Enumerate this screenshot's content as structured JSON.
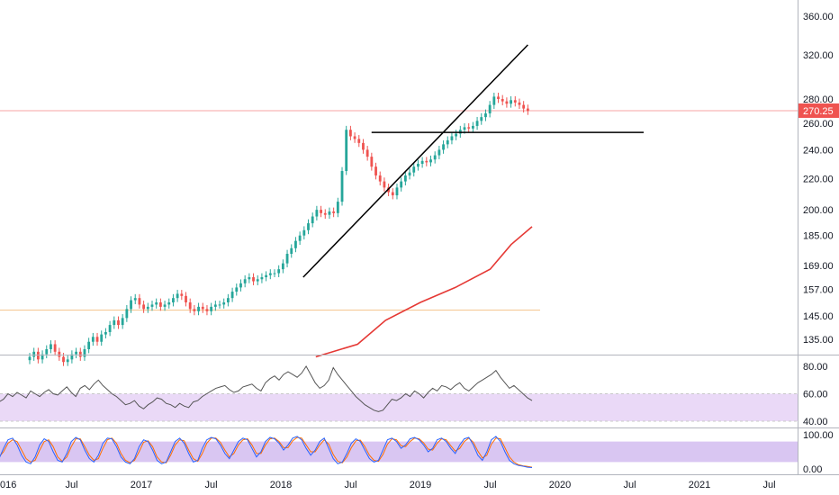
{
  "chart_data": [
    {
      "type": "candlestick",
      "panel": "price",
      "scale": "log",
      "x_labels": [
        "016",
        "Jul",
        "2017",
        "Jul",
        "2018",
        "Jul",
        "2019",
        "Jul",
        "2020",
        "Jul",
        "2021",
        "Jul"
      ],
      "x_label_years": [
        2016.0,
        2016.5,
        2017.0,
        2017.5,
        2018.0,
        2018.5,
        2019.0,
        2019.5,
        2020.0,
        2020.5,
        2021.0,
        2021.5
      ],
      "y_ticks": [
        135,
        145,
        157,
        169,
        185,
        200,
        220,
        240,
        260,
        280,
        320,
        360
      ],
      "y_tick_labels": [
        "135.00",
        "145.00",
        "157.00",
        "169.00",
        "185.00",
        "200.00",
        "220.00",
        "240.00",
        "260.00",
        "280.00",
        "320.00",
        "360.00"
      ],
      "last_price": 270.25,
      "last_price_label": "270.25",
      "colors": {
        "up": "#26a69a",
        "down": "#ef5350",
        "ma": "#e53935",
        "trendline": "#000000",
        "last_price_line": "#f7a6a6",
        "level_line": "#f5c28a"
      },
      "closes": [
        128,
        130,
        127,
        129,
        131,
        133,
        130,
        128,
        126,
        127,
        129,
        130,
        128,
        131,
        134,
        136,
        134,
        137,
        138,
        141,
        143,
        141,
        144,
        148,
        152,
        153,
        150,
        148,
        149,
        150,
        151,
        149,
        150,
        151,
        153,
        155,
        154,
        151,
        148,
        147,
        149,
        148,
        147,
        149,
        150,
        150,
        151,
        153,
        156,
        158,
        160,
        162,
        163,
        161,
        162,
        163,
        164,
        165,
        165,
        167,
        170,
        175,
        178,
        182,
        185,
        188,
        192,
        196,
        200,
        198,
        197,
        199,
        198,
        205,
        225,
        255,
        250,
        248,
        245,
        240,
        235,
        228,
        222,
        218,
        214,
        211,
        209,
        214,
        218,
        222,
        224,
        228,
        230,
        232,
        231,
        233,
        236,
        240,
        244,
        247,
        250,
        252,
        255,
        257,
        256,
        258,
        262,
        265,
        268,
        275,
        282,
        280,
        278,
        276,
        279,
        277,
        275,
        272,
        270
      ],
      "ma_line": [
        {
          "year": 2018.25,
          "value": 128
        },
        {
          "year": 2018.55,
          "value": 133
        },
        {
          "year": 2018.75,
          "value": 143
        },
        {
          "year": 2019.0,
          "value": 151
        },
        {
          "year": 2019.25,
          "value": 158
        },
        {
          "year": 2019.5,
          "value": 167
        },
        {
          "year": 2019.65,
          "value": 180
        },
        {
          "year": 2019.8,
          "value": 190
        }
      ],
      "trendlines": [
        {
          "name": "ascending-support",
          "from": {
            "year": 2018.16,
            "value": 163
          },
          "to": {
            "year": 2019.77,
            "value": 330
          }
        },
        {
          "name": "horizontal-resistance",
          "from": {
            "year": 2018.65,
            "value": 253
          },
          "to": {
            "year": 2020.6,
            "value": 253
          }
        }
      ],
      "horizontal_levels": [
        270.25,
        147.5
      ]
    },
    {
      "type": "line",
      "panel": "rsi",
      "y_ticks": [
        40,
        60,
        80
      ],
      "y_tick_labels": [
        "40.00",
        "60.00",
        "80.00"
      ],
      "band": [
        40,
        60
      ],
      "colors": {
        "line": "#555555",
        "band": "#ead9f7"
      },
      "values": [
        54,
        56,
        60,
        58,
        61,
        59,
        57,
        62,
        60,
        58,
        61,
        63,
        60,
        59,
        62,
        65,
        61,
        58,
        64,
        66,
        63,
        67,
        70,
        66,
        63,
        60,
        58,
        55,
        52,
        53,
        55,
        51,
        49,
        52,
        54,
        57,
        56,
        53,
        52,
        50,
        53,
        51,
        50,
        54,
        55,
        58,
        60,
        62,
        64,
        65,
        66,
        63,
        61,
        62,
        65,
        66,
        67,
        64,
        62,
        68,
        71,
        73,
        70,
        74,
        76,
        74,
        72,
        75,
        80,
        74,
        68,
        64,
        66,
        70,
        79,
        74,
        70,
        66,
        62,
        58,
        55,
        52,
        50,
        48,
        47,
        48,
        52,
        56,
        55,
        57,
        60,
        58,
        62,
        60,
        57,
        61,
        64,
        62,
        66,
        65,
        63,
        66,
        68,
        64,
        62,
        65,
        68,
        70,
        72,
        74,
        77,
        72,
        68,
        64,
        66,
        63,
        60,
        57,
        55
      ]
    },
    {
      "type": "line",
      "panel": "stochastic",
      "y_ticks": [
        0,
        100
      ],
      "y_tick_labels": [
        "0.00",
        "100.00"
      ],
      "band": [
        20,
        80
      ],
      "colors": {
        "k": "#2962ff",
        "d": "#ff6d00",
        "band": "#d9c6f2"
      },
      "k": [
        30,
        60,
        85,
        90,
        70,
        40,
        20,
        15,
        35,
        70,
        88,
        80,
        50,
        25,
        20,
        45,
        80,
        92,
        85,
        55,
        30,
        20,
        40,
        75,
        90,
        88,
        65,
        35,
        20,
        15,
        30,
        65,
        85,
        80,
        55,
        25,
        15,
        20,
        50,
        80,
        90,
        75,
        45,
        20,
        25,
        60,
        85,
        92,
        88,
        70,
        45,
        30,
        55,
        80,
        90,
        85,
        60,
        35,
        50,
        80,
        92,
        88,
        75,
        55,
        70,
        90,
        95,
        85,
        60,
        40,
        55,
        80,
        90,
        60,
        30,
        15,
        20,
        45,
        75,
        88,
        80,
        55,
        30,
        20,
        25,
        55,
        85,
        90,
        80,
        60,
        70,
        88,
        92,
        85,
        70,
        50,
        60,
        85,
        90,
        80,
        60,
        45,
        70,
        88,
        92,
        70,
        40,
        25,
        50,
        85,
        95,
        80,
        50,
        25,
        15,
        10,
        8,
        5,
        4
      ],
      "d": [
        35,
        50,
        75,
        85,
        80,
        55,
        30,
        20,
        25,
        55,
        80,
        85,
        65,
        35,
        22,
        35,
        65,
        88,
        88,
        65,
        40,
        25,
        30,
        60,
        85,
        90,
        75,
        45,
        25,
        18,
        25,
        50,
        78,
        82,
        65,
        35,
        20,
        18,
        40,
        70,
        85,
        82,
        55,
        30,
        22,
        45,
        75,
        90,
        90,
        78,
        55,
        35,
        45,
        70,
        85,
        88,
        70,
        45,
        45,
        70,
        88,
        90,
        80,
        62,
        62,
        82,
        92,
        90,
        70,
        50,
        50,
        70,
        85,
        72,
        42,
        22,
        18,
        35,
        62,
        82,
        84,
        65,
        40,
        25,
        22,
        42,
        72,
        88,
        85,
        68,
        65,
        80,
        90,
        88,
        76,
        58,
        55,
        75,
        88,
        85,
        68,
        52,
        60,
        80,
        90,
        78,
        52,
        32,
        40,
        72,
        90,
        88,
        62,
        35,
        20,
        12,
        9,
        7,
        5
      ]
    }
  ]
}
